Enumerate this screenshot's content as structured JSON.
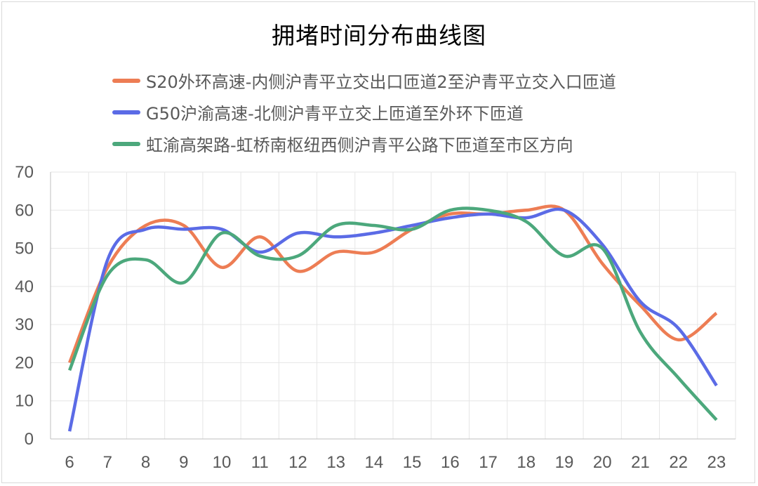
{
  "chart_data": {
    "type": "line",
    "title": "拥堵时间分布曲线图",
    "xlabel": "",
    "ylabel": "",
    "x": [
      6,
      7,
      8,
      9,
      10,
      11,
      12,
      13,
      14,
      15,
      16,
      17,
      18,
      19,
      20,
      21,
      22,
      23
    ],
    "ylim": [
      0,
      70
    ],
    "yticks": [
      0,
      10,
      20,
      30,
      40,
      50,
      60,
      70
    ],
    "grid": true,
    "legend_position": "top",
    "series": [
      {
        "name": "S20外环高速-内侧沪青平立交出口匝道2至沪青平立交入口匝道",
        "color": "#ED7D54",
        "values": [
          20,
          45,
          56,
          56,
          45,
          53,
          44,
          49,
          49,
          55,
          59,
          59,
          60,
          60,
          46,
          35,
          26,
          33
        ]
      },
      {
        "name": "G50沪渝高速-北侧沪青平立交上匝道至外环下匝道",
        "color": "#5B6BE6",
        "values": [
          2,
          47,
          55,
          55,
          55,
          49,
          54,
          53,
          54,
          56,
          58,
          59,
          58,
          60,
          51,
          36,
          29,
          14
        ]
      },
      {
        "name": "虹渝高架路-虹桥南枢纽西侧沪青平公路下匝道至市区方向",
        "color": "#4CA87C",
        "values": [
          18,
          43,
          47,
          41,
          54,
          48,
          48,
          56,
          56,
          55,
          60,
          60,
          57,
          48,
          50,
          28,
          16,
          5
        ]
      }
    ]
  }
}
